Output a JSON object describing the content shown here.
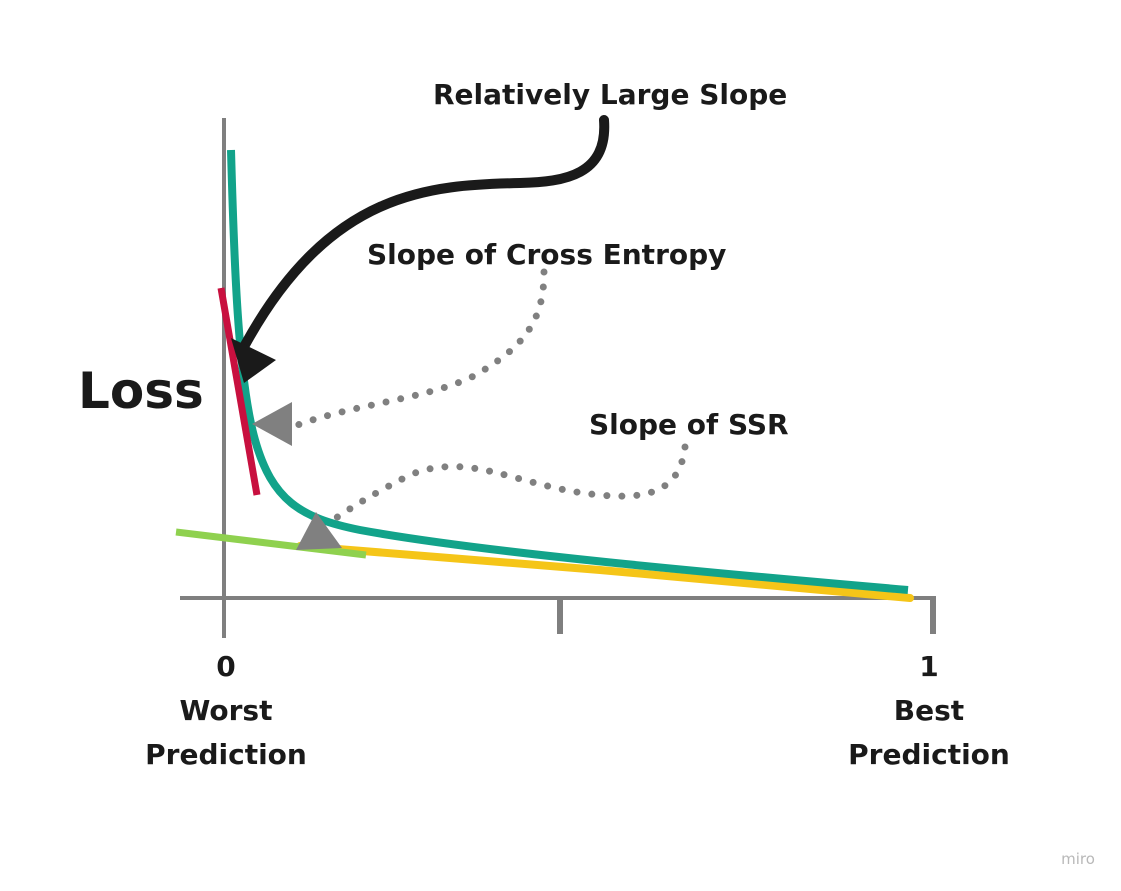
{
  "diagram": {
    "y_axis_label": "Loss",
    "x_tick_0": "0",
    "x_tick_1": "1",
    "x_label_left_line1": "Worst",
    "x_label_left_line2": "Prediction",
    "x_label_right_line1": "Best",
    "x_label_right_line2": "Prediction"
  },
  "annotations": {
    "large_slope": "Relatively Large Slope",
    "cross_entropy_slope": "Slope of Cross Entropy",
    "ssr_slope": "Slope of SSR"
  },
  "watermark": "miro",
  "colors": {
    "axis": "#7f7f7f",
    "cross_entropy_curve": "#12a38a",
    "ssr_curve": "#f5c518",
    "cross_entropy_tangent": "#c8103f",
    "ssr_tangent": "#8fd14f",
    "black_arrow": "#1a1a1a",
    "dotted_arrow": "#808080"
  }
}
